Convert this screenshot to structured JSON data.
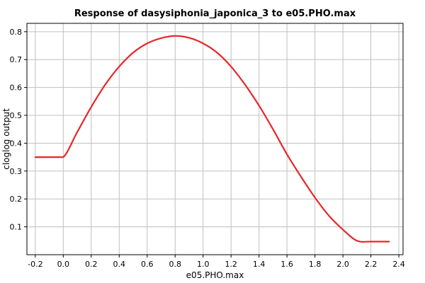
{
  "chart_data": {
    "type": "line",
    "title": "Response of dasysiphonia_japonica_3 to e05.PHO.max",
    "xlabel": "e05.PHO.max",
    "ylabel": "cloglog output",
    "xlim": [
      -0.26,
      2.43
    ],
    "ylim": [
      0.0,
      0.83
    ],
    "xticks": [
      -0.2,
      0.0,
      0.2,
      0.4,
      0.6,
      0.8,
      1.0,
      1.2,
      1.4,
      1.6,
      1.8,
      2.0,
      2.2,
      2.4
    ],
    "xtick_labels": [
      "-0.2",
      "0.0",
      "0.2",
      "0.4",
      "0.6",
      "0.8",
      "1.0",
      "1.2",
      "1.4",
      "1.6",
      "1.8",
      "2.0",
      "2.2",
      "2.4"
    ],
    "yticks": [
      0.1,
      0.2,
      0.3,
      0.4,
      0.5,
      0.6,
      0.7,
      0.8
    ],
    "ytick_labels": [
      "0.1",
      "0.2",
      "0.3",
      "0.4",
      "0.5",
      "0.6",
      "0.7",
      "0.8"
    ],
    "grid": true,
    "series": [
      {
        "color": "#e8262a",
        "x": [
          -0.2,
          -0.1,
          0.0,
          0.1,
          0.2,
          0.3,
          0.4,
          0.5,
          0.6,
          0.7,
          0.8,
          0.9,
          1.0,
          1.1,
          1.2,
          1.3,
          1.4,
          1.5,
          1.6,
          1.7,
          1.8,
          1.9,
          2.0,
          2.1,
          2.2,
          2.33
        ],
        "y": [
          0.35,
          0.35,
          0.35,
          0.44,
          0.53,
          0.61,
          0.675,
          0.725,
          0.758,
          0.777,
          0.785,
          0.778,
          0.758,
          0.725,
          0.675,
          0.61,
          0.535,
          0.45,
          0.36,
          0.28,
          0.205,
          0.14,
          0.09,
          0.05,
          0.047,
          0.047
        ]
      }
    ]
  },
  "colors": {
    "background": "#ffffff",
    "grid": "#c0c0c0",
    "axis": "#000000",
    "line": "#e8262a"
  }
}
